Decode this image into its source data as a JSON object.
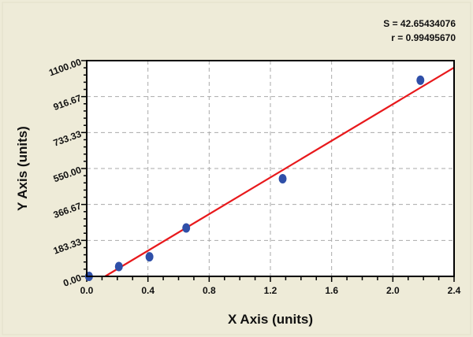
{
  "chart_data": {
    "type": "scatter",
    "title": "",
    "xlabel": "X Axis (units)",
    "ylabel": "Y Axis (units)",
    "xlim": [
      0,
      2.4
    ],
    "ylim": [
      0,
      1100
    ],
    "xticks": [
      "0.0",
      "0.4",
      "0.8",
      "1.2",
      "1.6",
      "2.0",
      "2.4"
    ],
    "yticks": [
      "0.00",
      "183.33",
      "366.67",
      "550.00",
      "733.33",
      "916.67",
      "1100.00"
    ],
    "grid": true,
    "points": [
      {
        "x": 0.015,
        "y": 0
      },
      {
        "x": 0.21,
        "y": 50
      },
      {
        "x": 0.41,
        "y": 100
      },
      {
        "x": 0.65,
        "y": 247
      },
      {
        "x": 1.28,
        "y": 498
      },
      {
        "x": 2.18,
        "y": 1000
      }
    ],
    "fit_line": {
      "slope": 467,
      "intercept": -56
    },
    "annotations": [
      "S = 42.65434076",
      "r = 0.99495670"
    ],
    "colors": {
      "points": "#2f4fa8",
      "fit": "#e8191c",
      "background": "#eeebd8"
    }
  }
}
